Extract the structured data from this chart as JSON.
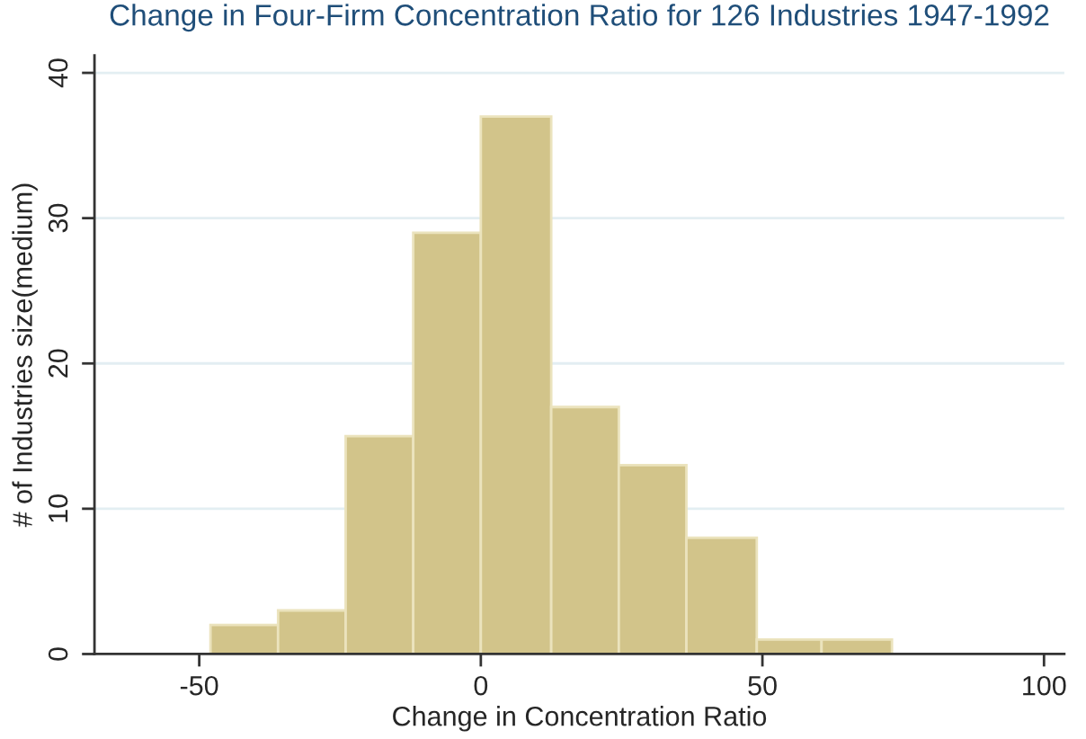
{
  "chart_data": {
    "type": "histogram",
    "title": "Change in Four-Firm Concentration Ratio for 126 Industries 1947-1992",
    "xlabel": "Change in Concentration Ratio",
    "ylabel": "# of Industries size(medium)",
    "bins": [
      -48,
      -36,
      -24,
      -12,
      0,
      12.5,
      24.5,
      36.5,
      49,
      60.5,
      73
    ],
    "values": [
      2,
      3,
      15,
      29,
      37,
      17,
      13,
      8,
      1,
      1
    ],
    "color": "#d2c48a",
    "xlim": [
      -68.6,
      103.6
    ],
    "xticks": [
      -50,
      0,
      50,
      100
    ],
    "ylim": [
      0,
      41.2
    ],
    "yticks": [
      0,
      10,
      20,
      30,
      40
    ],
    "grid": "y"
  }
}
